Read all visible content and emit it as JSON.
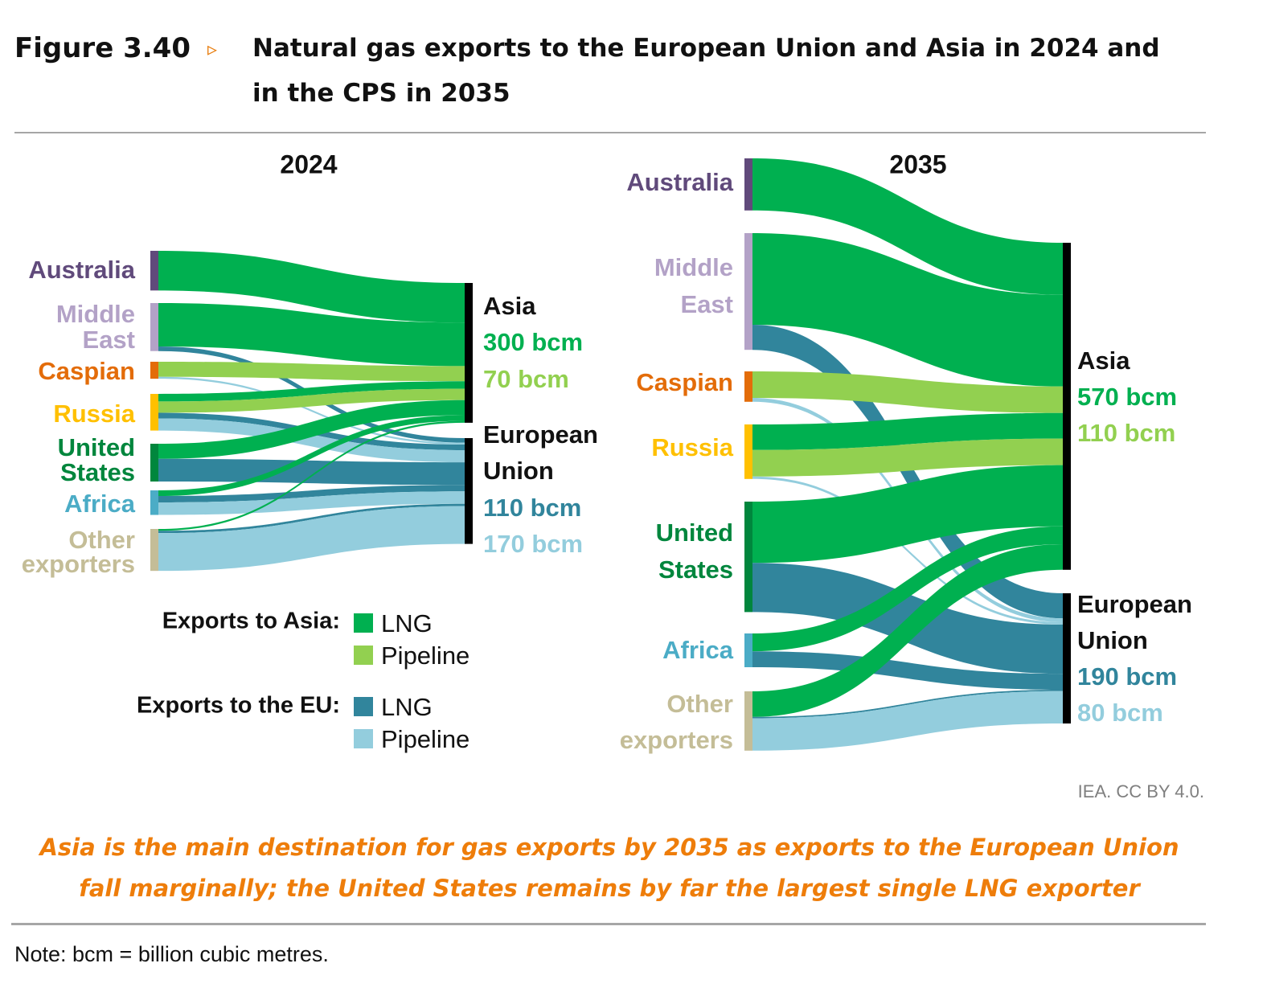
{
  "header": {
    "figure_label": "Figure 3.40",
    "arrow": "▹",
    "title_line1": "Natural gas exports to the European Union and Asia in 2024 and",
    "title_line2": "in the CPS in 2035"
  },
  "legend": {
    "asia_heading": "Exports to Asia:",
    "eu_heading": "Exports to the EU:",
    "lng": "LNG",
    "pipeline": "Pipeline"
  },
  "colors": {
    "asia_lng": "#00b050",
    "asia_pipeline": "#92d050",
    "eu_lng": "#31859c",
    "eu_pipeline": "#93cddd"
  },
  "chart_data": [
    {
      "type": "sankey",
      "title": "2024",
      "sources": [
        {
          "name": "Australia",
          "lines": [
            "Australia"
          ],
          "color": "#604a7b"
        },
        {
          "name": "Middle East",
          "lines": [
            "Middle",
            "East"
          ],
          "color": "#b3a2c7"
        },
        {
          "name": "Caspian",
          "lines": [
            "Caspian"
          ],
          "color": "#e36c09"
        },
        {
          "name": "Russia",
          "lines": [
            "Russia"
          ],
          "color": "#ffc000"
        },
        {
          "name": "United States",
          "lines": [
            "United",
            "States"
          ],
          "color": "#00863d"
        },
        {
          "name": "Africa",
          "lines": [
            "Africa"
          ],
          "color": "#4bacc6"
        },
        {
          "name": "Other exporters",
          "lines": [
            "Other",
            "exporters"
          ],
          "color": "#c4bd97"
        }
      ],
      "targets": [
        {
          "name": "Asia",
          "lines": [
            "Asia"
          ],
          "lng_total": "300 bcm",
          "pipeline_total": "70 bcm"
        },
        {
          "name": "European Union",
          "lines": [
            "European",
            "Union"
          ],
          "lng_total": "110 bcm",
          "pipeline_total": "170 bcm"
        }
      ],
      "links": [
        {
          "source": 0,
          "target": 0,
          "type": "lng",
          "value": 105
        },
        {
          "source": 1,
          "target": 0,
          "type": "lng",
          "value": 115
        },
        {
          "source": 1,
          "target": 1,
          "type": "lng",
          "value": 12
        },
        {
          "source": 2,
          "target": 0,
          "type": "pipeline",
          "value": 40
        },
        {
          "source": 2,
          "target": 1,
          "type": "pipeline",
          "value": 5
        },
        {
          "source": 3,
          "target": 0,
          "type": "lng",
          "value": 20
        },
        {
          "source": 3,
          "target": 0,
          "type": "pipeline",
          "value": 30
        },
        {
          "source": 3,
          "target": 1,
          "type": "lng",
          "value": 15
        },
        {
          "source": 3,
          "target": 1,
          "type": "pipeline",
          "value": 32
        },
        {
          "source": 4,
          "target": 0,
          "type": "lng",
          "value": 40
        },
        {
          "source": 4,
          "target": 1,
          "type": "lng",
          "value": 60
        },
        {
          "source": 5,
          "target": 0,
          "type": "lng",
          "value": 15
        },
        {
          "source": 5,
          "target": 1,
          "type": "lng",
          "value": 17
        },
        {
          "source": 5,
          "target": 1,
          "type": "pipeline",
          "value": 33
        },
        {
          "source": 6,
          "target": 0,
          "type": "lng",
          "value": 5
        },
        {
          "source": 6,
          "target": 1,
          "type": "lng",
          "value": 6
        },
        {
          "source": 6,
          "target": 1,
          "type": "pipeline",
          "value": 100
        }
      ],
      "units": "bcm"
    },
    {
      "type": "sankey",
      "title": "2035",
      "sources": [
        {
          "name": "Australia",
          "lines": [
            "Australia"
          ],
          "color": "#604a7b"
        },
        {
          "name": "Middle East",
          "lines": [
            "Middle",
            "East"
          ],
          "color": "#b3a2c7"
        },
        {
          "name": "Caspian",
          "lines": [
            "Caspian"
          ],
          "color": "#e36c09"
        },
        {
          "name": "Russia",
          "lines": [
            "Russia"
          ],
          "color": "#ffc000"
        },
        {
          "name": "United States",
          "lines": [
            "United",
            "States"
          ],
          "color": "#00863d"
        },
        {
          "name": "Africa",
          "lines": [
            "Africa"
          ],
          "color": "#4bacc6"
        },
        {
          "name": "Other exporters",
          "lines": [
            "Other",
            "exporters"
          ],
          "color": "#c4bd97"
        }
      ],
      "targets": [
        {
          "name": "Asia",
          "lines": [
            "Asia"
          ],
          "lng_total": "570 bcm",
          "pipeline_total": "110 bcm"
        },
        {
          "name": "European Union",
          "lines": [
            "European",
            "Union"
          ],
          "lng_total": "190 bcm",
          "pipeline_total": "80 bcm"
        }
      ],
      "links": [
        {
          "source": 0,
          "target": 0,
          "type": "lng",
          "value": 108
        },
        {
          "source": 1,
          "target": 0,
          "type": "lng",
          "value": 190
        },
        {
          "source": 1,
          "target": 1,
          "type": "lng",
          "value": 52
        },
        {
          "source": 2,
          "target": 0,
          "type": "pipeline",
          "value": 55
        },
        {
          "source": 2,
          "target": 1,
          "type": "pipeline",
          "value": 8
        },
        {
          "source": 3,
          "target": 0,
          "type": "lng",
          "value": 53
        },
        {
          "source": 3,
          "target": 0,
          "type": "pipeline",
          "value": 55
        },
        {
          "source": 3,
          "target": 1,
          "type": "pipeline",
          "value": 5
        },
        {
          "source": 4,
          "target": 0,
          "type": "lng",
          "value": 127
        },
        {
          "source": 4,
          "target": 1,
          "type": "lng",
          "value": 102
        },
        {
          "source": 5,
          "target": 0,
          "type": "lng",
          "value": 37
        },
        {
          "source": 5,
          "target": 1,
          "type": "lng",
          "value": 33
        },
        {
          "source": 6,
          "target": 0,
          "type": "lng",
          "value": 53
        },
        {
          "source": 6,
          "target": 1,
          "type": "lng",
          "value": 3
        },
        {
          "source": 6,
          "target": 1,
          "type": "pipeline",
          "value": 67
        }
      ],
      "units": "bcm"
    }
  ],
  "footer": {
    "credit": "IEA. CC BY 4.0.",
    "caption_line1": "Asia is the main destination for gas exports by 2035 as exports to the European Union",
    "caption_line2": "fall marginally; the United States remains by far the largest single LNG exporter",
    "note": "Note: bcm = billion cubic metres."
  }
}
